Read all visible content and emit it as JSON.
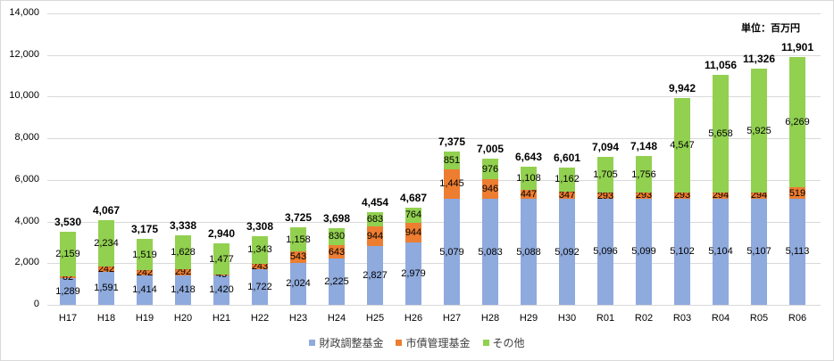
{
  "chart_data": {
    "type": "bar",
    "stacked": true,
    "title": "",
    "unit_label": "単位：百万円",
    "xlabel": "",
    "ylabel": "",
    "ylim": [
      0,
      14000
    ],
    "yticks": [
      "0",
      "2,000",
      "4,000",
      "6,000",
      "8,000",
      "10,000",
      "12,000",
      "14,000"
    ],
    "grid": true,
    "legend_position": "bottom",
    "categories": [
      "H17",
      "H18",
      "H19",
      "H20",
      "H21",
      "H22",
      "H23",
      "H24",
      "H25",
      "H26",
      "H27",
      "H28",
      "H29",
      "H30",
      "R01",
      "R02",
      "R03",
      "R04",
      "R05",
      "R06"
    ],
    "series": [
      {
        "name": "財政調整基金",
        "color": "#8faadc",
        "values": [
          1289,
          1591,
          1414,
          1418,
          1420,
          1722,
          2024,
          2225,
          2827,
          2979,
          5079,
          5083,
          5088,
          5092,
          5096,
          5099,
          5102,
          5104,
          5107,
          5113
        ]
      },
      {
        "name": "市債管理基金",
        "color": "#ed7d31",
        "values": [
          82,
          242,
          242,
          292,
          43,
          243,
          543,
          643,
          944,
          944,
          1445,
          946,
          447,
          347,
          293,
          293,
          293,
          294,
          294,
          519
        ]
      },
      {
        "name": "その他",
        "color": "#92d050",
        "values": [
          2159,
          2234,
          1519,
          1628,
          1477,
          1343,
          1158,
          830,
          683,
          764,
          851,
          976,
          1108,
          1162,
          1705,
          1756,
          4547,
          5658,
          5925,
          6269
        ]
      }
    ],
    "totals": [
      3530,
      4067,
      3175,
      3338,
      2940,
      3308,
      3725,
      3698,
      4454,
      4687,
      7375,
      7005,
      6643,
      6601,
      7094,
      7148,
      9942,
      11056,
      11326,
      11901
    ],
    "segment_labels": [
      [
        "1,289",
        "82",
        "2,159"
      ],
      [
        "1,591",
        "242",
        "2,234"
      ],
      [
        "1,414",
        "242",
        "1,519"
      ],
      [
        "1,418",
        "292",
        "1,628"
      ],
      [
        "1,420",
        "43",
        "1,477"
      ],
      [
        "1,722",
        "243",
        "1,343"
      ],
      [
        "2,024",
        "543",
        "1,158"
      ],
      [
        "2,225",
        "643",
        "830"
      ],
      [
        "2,827",
        "944",
        "683"
      ],
      [
        "2,979",
        "944",
        "764"
      ],
      [
        "5,079",
        "1,445",
        "851"
      ],
      [
        "5,083",
        "946",
        "976"
      ],
      [
        "5,088",
        "447",
        "1,108"
      ],
      [
        "5,092",
        "347",
        "1,162"
      ],
      [
        "5,096",
        "293",
        "1,705"
      ],
      [
        "5,099",
        "293",
        "1,756"
      ],
      [
        "5,102",
        "293",
        "4,547"
      ],
      [
        "5,104",
        "294",
        "5,658"
      ],
      [
        "5,107",
        "294",
        "5,925"
      ],
      [
        "5,113",
        "519",
        "6,269"
      ]
    ],
    "total_labels": [
      "3,530",
      "4,067",
      "3,175",
      "3,338",
      "2,940",
      "3,308",
      "3,725",
      "3,698",
      "4,454",
      "4,687",
      "7,375",
      "7,005",
      "6,643",
      "6,601",
      "7,094",
      "7,148",
      "9,942",
      "11,056",
      "11,326",
      "11,901"
    ]
  },
  "legend": [
    {
      "label": "財政調整基金",
      "color": "#8faadc"
    },
    {
      "label": "市債管理基金",
      "color": "#ed7d31"
    },
    {
      "label": "その他",
      "color": "#92d050"
    }
  ]
}
